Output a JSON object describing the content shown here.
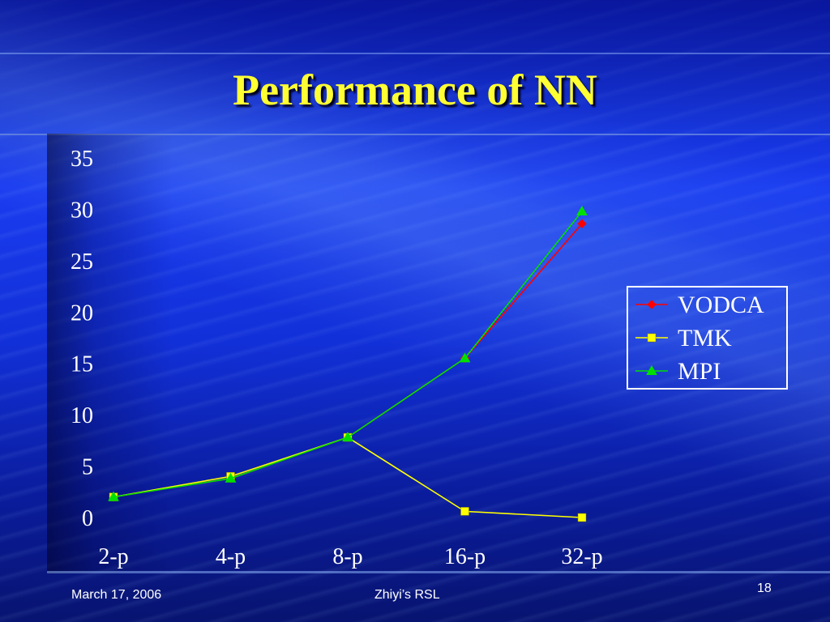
{
  "slide": {
    "title": "Performance of NN",
    "footer_left": "March 17, 2006",
    "footer_center": "Zhiyi’s RSL",
    "slide_number": "18"
  },
  "colors": {
    "title": "#ffff33",
    "VODCA": "#ff0000",
    "TMK": "#ffff00",
    "MPI": "#00e000"
  },
  "chart_data": {
    "type": "line",
    "categories": [
      "2-p",
      "4-p",
      "8-p",
      "16-p",
      "32-p"
    ],
    "ylim": [
      0,
      35
    ],
    "yticks": [
      "0",
      "5",
      "10",
      "15",
      "20",
      "25",
      "30",
      "35"
    ],
    "grid": false,
    "legend_position": "right",
    "series": [
      {
        "name": "VODCA",
        "marker": "diamond",
        "values": [
          2.0,
          3.8,
          7.8,
          15.5,
          28.6
        ]
      },
      {
        "name": "TMK",
        "marker": "square",
        "values": [
          2.0,
          4.0,
          7.8,
          0.6,
          0.0
        ]
      },
      {
        "name": "MPI",
        "marker": "triangle",
        "values": [
          2.0,
          3.8,
          7.8,
          15.5,
          29.8
        ]
      }
    ]
  }
}
